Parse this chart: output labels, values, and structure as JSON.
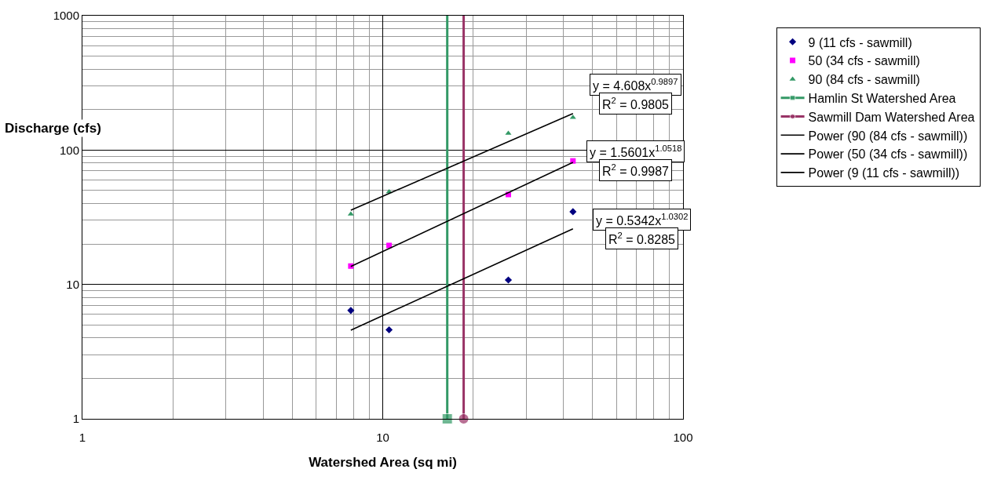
{
  "chart_data": {
    "type": "scatter",
    "xlabel": "Watershed Area (sq mi)",
    "ylabel": "Discharge (cfs)",
    "log": "xy",
    "grid": true,
    "legend": "right",
    "xlim": [
      1,
      100
    ],
    "xticks": [
      1,
      10,
      100
    ],
    "ylim": [
      1,
      1000
    ],
    "yticks": [
      1,
      10,
      100,
      1000
    ],
    "series": [
      {
        "name": "9 (11 cfs - sawmill)",
        "type": "scatter",
        "marker": "diamond",
        "color": "#000080",
        "x": [
          7.83,
          10.5,
          26.2,
          43
        ],
        "values": [
          6.4,
          4.6,
          10.8,
          34.8
        ]
      },
      {
        "name": "50 (34 cfs - sawmill)",
        "type": "scatter",
        "marker": "square",
        "color": "#ff00ff",
        "x": [
          7.83,
          10.5,
          26.2,
          43
        ],
        "values": [
          13.7,
          19.5,
          46.7,
          83
        ]
      },
      {
        "name": "90 (84 cfs - sawmill)",
        "type": "scatter",
        "marker": "triangle",
        "color": "#339966",
        "x": [
          7.83,
          10.5,
          26.2,
          43
        ],
        "values": [
          33.4,
          49,
          133,
          175
        ]
      },
      {
        "name": "Hamlin St Watershed Area",
        "type": "line",
        "marker": "square",
        "color": "#339966",
        "x": [
          16.4,
          16.4
        ],
        "values": [
          1,
          1000
        ]
      },
      {
        "name": "Sawmill Dam Watershed Area",
        "type": "line",
        "marker": "circle",
        "color": "#993366",
        "x": [
          18.6,
          18.6
        ],
        "values": [
          1,
          1000
        ]
      },
      {
        "name": "Power (90 (84 cfs - sawmill))",
        "type": "line",
        "marker": "none",
        "color": "#000000",
        "x": [
          7.83,
          43
        ],
        "values": [
          35.7,
          187
        ]
      },
      {
        "name": "Power (50 (34 cfs - sawmill))",
        "type": "line",
        "marker": "none",
        "color": "#000000",
        "x": [
          7.83,
          43
        ],
        "values": [
          13.6,
          81
        ]
      },
      {
        "name": "Power (9 (11 cfs - sawmill))",
        "type": "line",
        "marker": "none",
        "color": "#000000",
        "x": [
          7.83,
          43
        ],
        "values": [
          4.57,
          25.9
        ]
      }
    ],
    "annotations": [
      "y = 4.608x$^{0.9897}$",
      "R$^{2}$ = 0.9805",
      "y = 1.5601x$^{1.0518}$",
      "R$^{2}$ = 0.9987",
      "y = 0.5342x$^{1.0302}$",
      "R$^{2}$ = 0.8285"
    ]
  }
}
